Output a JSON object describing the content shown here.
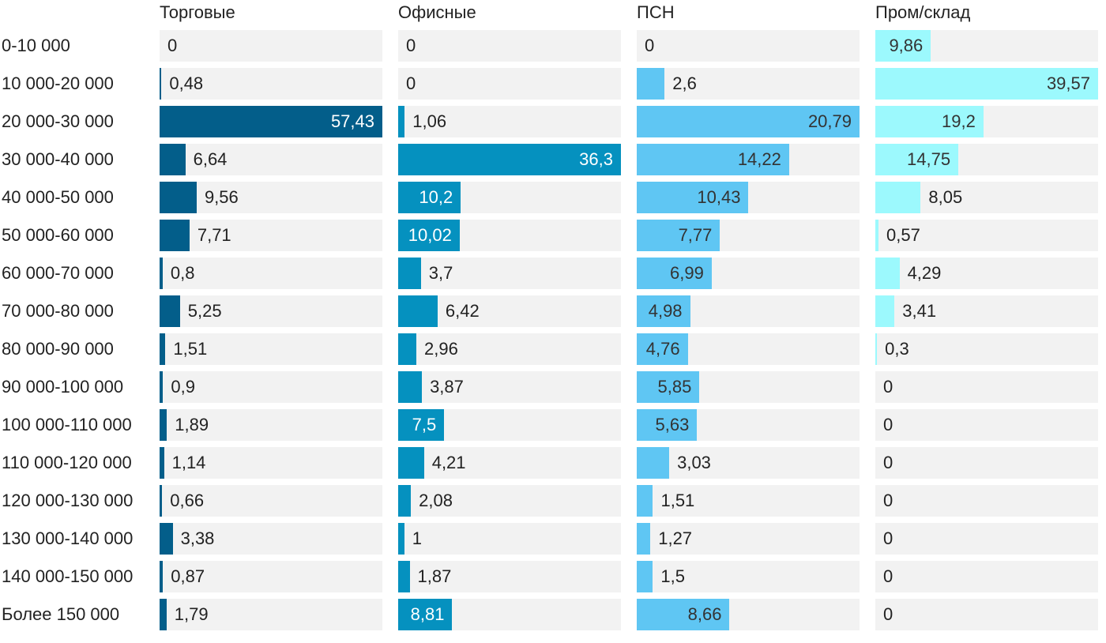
{
  "chart_data": {
    "type": "bar",
    "orientation": "horizontal",
    "layout": "small-multiples",
    "categories": [
      "0-10 000",
      "10 000-20 000",
      "20 000-30 000",
      "30 000-40 000",
      "40 000-50 000",
      "50 000-60 000",
      "60 000-70 000",
      "70 000-80 000",
      "80 000-90 000",
      "90 000-100 000",
      "100 000-110 000",
      "110 000-120 000",
      "120 000-130 000",
      "130 000-140 000",
      "140 000-150 000",
      "Более 150 000"
    ],
    "series": [
      {
        "name": "Торговые",
        "color": "#035e8a",
        "values": [
          0,
          0.48,
          57.43,
          6.64,
          9.56,
          7.71,
          0.8,
          5.25,
          1.51,
          0.9,
          1.89,
          1.14,
          0.66,
          3.38,
          0.87,
          1.79
        ],
        "labels": [
          "0",
          "0,48",
          "57,43",
          "6,64",
          "9,56",
          "7,71",
          "0,8",
          "5,25",
          "1,51",
          "0,9",
          "1,89",
          "1,14",
          "0,66",
          "3,38",
          "0,87",
          "1,79"
        ]
      },
      {
        "name": "Офисные",
        "color": "#0591bf",
        "values": [
          0,
          0,
          1.06,
          36.3,
          10.2,
          10.02,
          3.7,
          6.42,
          2.96,
          3.87,
          7.5,
          4.21,
          2.08,
          1,
          1.87,
          8.81
        ],
        "labels": [
          "0",
          "0",
          "1,06",
          "36,3",
          "10,2",
          "10,02",
          "3,7",
          "6,42",
          "2,96",
          "3,87",
          "7,5",
          "4,21",
          "2,08",
          "1",
          "1,87",
          "8,81"
        ]
      },
      {
        "name": "ПСН",
        "color": "#5fc6f3",
        "values": [
          0,
          2.6,
          20.79,
          14.22,
          10.43,
          7.77,
          6.99,
          4.98,
          4.76,
          5.85,
          5.63,
          3.03,
          1.51,
          1.27,
          1.5,
          8.66
        ],
        "labels": [
          "0",
          "2,6",
          "20,79",
          "14,22",
          "10,43",
          "7,77",
          "6,99",
          "4,98",
          "4,76",
          "5,85",
          "5,63",
          "3,03",
          "1,51",
          "1,27",
          "1,5",
          "8,66"
        ]
      },
      {
        "name": "Пром/склад",
        "color": "#9cf9fd",
        "values": [
          9.86,
          39.57,
          19.2,
          14.75,
          8.05,
          0.57,
          4.29,
          3.41,
          0.3,
          0,
          0,
          0,
          0,
          0,
          0,
          0
        ],
        "labels": [
          "9,86",
          "39,57",
          "19,2",
          "14,75",
          "8,05",
          "0,57",
          "4,29",
          "3,41",
          "0,3",
          "0",
          "0",
          "0",
          "0",
          "0",
          "0",
          "0"
        ]
      }
    ],
    "xlim_per_series": [
      57.43,
      36.3,
      20.79,
      39.57
    ],
    "grid": false,
    "legend": "none"
  }
}
